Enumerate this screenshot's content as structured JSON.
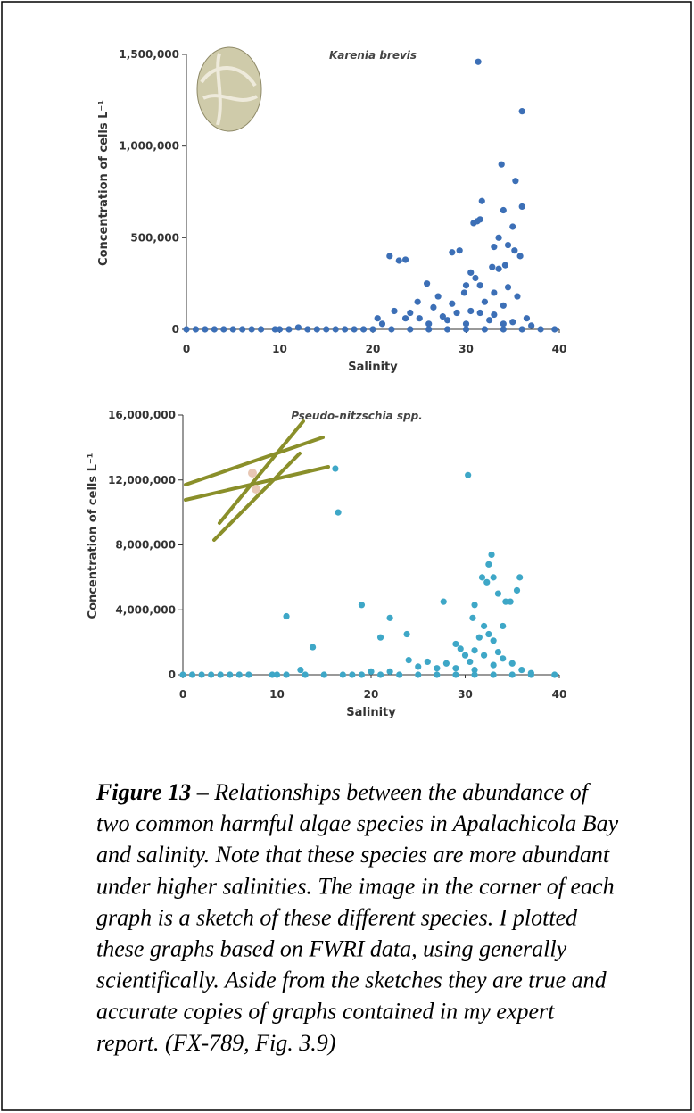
{
  "chart_data": [
    {
      "type": "scatter",
      "title": "Karenia brevis",
      "x_label": "Salinity",
      "y_label": "Concentration of cells L⁻¹",
      "color": "#3c6fb6",
      "xlim": [
        0,
        40
      ],
      "xticks": [
        0,
        10,
        20,
        30,
        40
      ],
      "ylim": [
        0,
        1500000
      ],
      "yticks": [
        0,
        {
          "value": 500000,
          "label": "500,000"
        },
        {
          "value": 1000000,
          "label": "1,000,000"
        },
        {
          "value": 1500000,
          "label": "1,500,000"
        }
      ],
      "x": [
        31.3,
        36,
        33.8,
        35.3,
        31.7,
        36,
        34,
        31.5,
        31.2,
        30.8,
        35,
        33.5,
        34.5,
        33,
        28.5,
        29.3,
        35.2,
        21.8,
        23.5,
        22.8,
        35.8,
        34.2,
        32.8,
        33.5,
        30.5,
        31,
        25.8,
        30,
        31.5,
        34.5,
        29.8,
        33,
        27,
        35.5,
        24.8,
        28.5,
        32,
        26.5,
        34,
        22.3,
        24,
        29,
        30.5,
        31.5,
        20.5,
        23.5,
        25,
        27.5,
        33,
        36.5,
        28,
        32.5,
        35,
        21,
        26,
        30,
        34,
        37,
        12,
        0,
        1,
        2,
        3,
        4,
        5,
        6,
        7,
        8,
        9.5,
        10,
        11,
        13,
        14,
        15,
        16,
        17,
        18,
        19,
        20,
        22,
        24,
        26,
        28,
        30,
        32,
        34,
        36,
        38,
        39.5
      ],
      "values": [
        1460000,
        1190000,
        900000,
        810000,
        700000,
        670000,
        650000,
        600000,
        590000,
        580000,
        560000,
        500000,
        460000,
        450000,
        420000,
        430000,
        430000,
        400000,
        380000,
        375000,
        400000,
        350000,
        340000,
        330000,
        310000,
        280000,
        250000,
        240000,
        240000,
        230000,
        200000,
        200000,
        180000,
        180000,
        150000,
        140000,
        150000,
        120000,
        130000,
        100000,
        90000,
        90000,
        100000,
        90000,
        60000,
        60000,
        60000,
        70000,
        80000,
        60000,
        50000,
        50000,
        40000,
        30000,
        30000,
        30000,
        30000,
        20000,
        10000,
        0,
        0,
        0,
        0,
        0,
        0,
        0,
        0,
        0,
        0,
        0,
        0,
        0,
        0,
        0,
        0,
        0,
        0,
        0,
        0,
        0,
        0,
        0,
        0,
        0,
        0,
        0,
        0,
        0,
        0
      ]
    },
    {
      "type": "scatter",
      "title": "Pseudo-nitzschia spp.",
      "x_label": "Salinity",
      "y_label": "Concentration of cells L⁻¹",
      "color": "#3ea7c7",
      "xlim": [
        0,
        40
      ],
      "xticks": [
        0,
        10,
        20,
        30,
        40
      ],
      "ylim": [
        0,
        16000000
      ],
      "yticks": [
        0,
        {
          "value": 4000000,
          "label": "4,000,000"
        },
        {
          "value": 8000000,
          "label": "8,000,000"
        },
        {
          "value": 12000000,
          "label": "12,000,000"
        },
        {
          "value": 16000000,
          "label": "16,000,000"
        }
      ],
      "x": [
        16.2,
        16.5,
        30.3,
        32.8,
        32.5,
        33,
        35.8,
        31.8,
        32.3,
        35.5,
        33.5,
        31,
        27.7,
        19,
        34.3,
        34.8,
        11,
        22,
        34,
        30.8,
        32,
        23.8,
        21,
        31.5,
        33,
        32.5,
        29,
        13.8,
        29.5,
        31,
        33.5,
        30,
        32,
        34,
        24,
        26,
        28,
        30.5,
        35,
        25,
        27,
        12.5,
        29,
        33,
        36,
        20,
        22,
        31,
        37,
        0,
        1,
        2,
        3,
        4,
        5,
        6,
        7,
        9.5,
        10,
        11,
        13,
        15,
        17,
        18,
        19,
        21,
        23,
        25,
        27,
        29,
        31,
        33,
        35,
        37,
        39.5
      ],
      "values": [
        12700000,
        10000000,
        12300000,
        7400000,
        6800000,
        6000000,
        6000000,
        6000000,
        5700000,
        5200000,
        5000000,
        4300000,
        4500000,
        4300000,
        4500000,
        4500000,
        3600000,
        3500000,
        3000000,
        3500000,
        3000000,
        2500000,
        2300000,
        2300000,
        2100000,
        2500000,
        1900000,
        1700000,
        1600000,
        1500000,
        1400000,
        1200000,
        1200000,
        1000000,
        900000,
        800000,
        700000,
        800000,
        700000,
        500000,
        400000,
        300000,
        400000,
        600000,
        300000,
        200000,
        200000,
        300000,
        100000,
        0,
        0,
        0,
        0,
        0,
        0,
        0,
        0,
        0,
        0,
        0,
        0,
        0,
        0,
        0,
        0,
        0,
        0,
        0,
        0,
        0,
        0,
        0,
        0,
        0,
        0
      ]
    }
  ],
  "caption": {
    "label": "Figure 13",
    "lines": [
      "– Relationships between the abundance of",
      "two common harmful algae species in Apalachicola Bay",
      "and salinity.  Note that these species are more abundant",
      "under higher salinities. The image in the corner of each",
      "graph is a sketch of these different species.  I plotted",
      "these graphs based on FWRI data, using generally",
      "scientifically.  Aside from the sketches they are true and",
      "accurate copies of graphs contained in my expert",
      "report. (FX-789, Fig. 3.9)"
    ]
  }
}
